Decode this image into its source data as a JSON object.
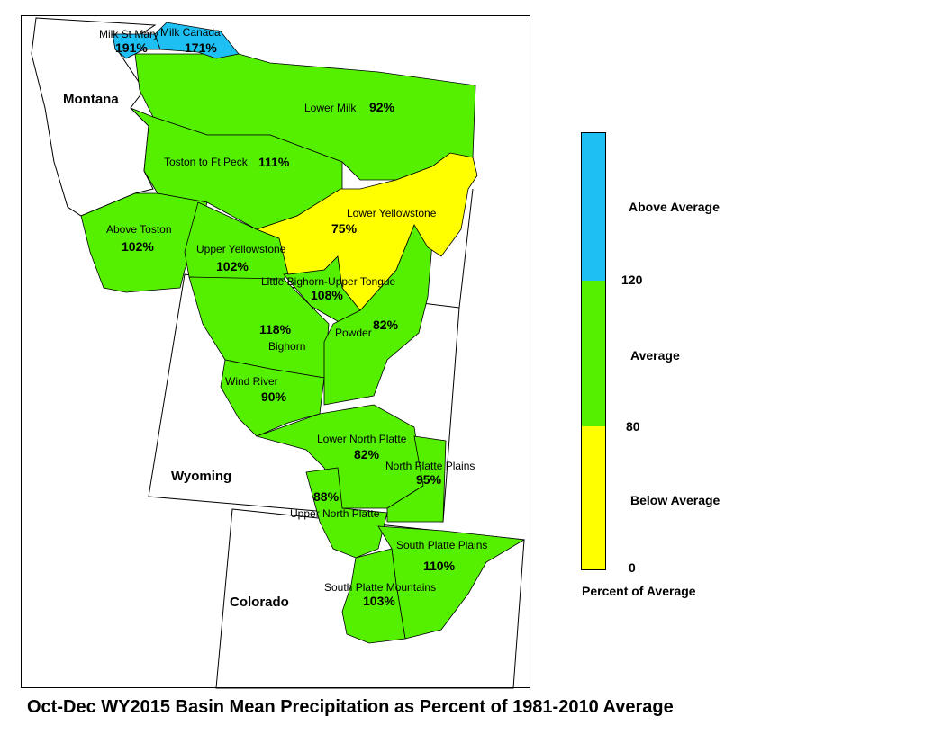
{
  "title": "Oct-Dec WY2015 Basin Mean Precipitation as Percent of 1981-2010 Average",
  "colors": {
    "above": "#1EBFF2",
    "average": "#55F000",
    "below": "#FFFF00"
  },
  "states": [
    "Montana",
    "Wyoming",
    "Colorado"
  ],
  "basins": [
    {
      "name": "Milk St Mary",
      "value": "191%",
      "category": "above"
    },
    {
      "name": "Milk Canada",
      "value": "171%",
      "category": "above"
    },
    {
      "name": "Lower Milk",
      "value": "92%",
      "category": "average"
    },
    {
      "name": "Toston to Ft Peck",
      "value": "111%",
      "category": "average"
    },
    {
      "name": "Lower Yellowstone",
      "value": "75%",
      "category": "below"
    },
    {
      "name": "Above Toston",
      "value": "102%",
      "category": "average"
    },
    {
      "name": "Upper Yellowstone",
      "value": "102%",
      "category": "average"
    },
    {
      "name": "Little Bighorn-Upper Tongue",
      "value": "108%",
      "category": "average"
    },
    {
      "name": "Bighorn",
      "value": "118%",
      "category": "average"
    },
    {
      "name": "Powder",
      "value": "82%",
      "category": "average"
    },
    {
      "name": "Wind River",
      "value": "90%",
      "category": "average"
    },
    {
      "name": "Lower North Platte",
      "value": "82%",
      "category": "average"
    },
    {
      "name": "North Platte Plains",
      "value": "95%",
      "category": "average"
    },
    {
      "name": "Upper North Platte",
      "value": "88%",
      "category": "average"
    },
    {
      "name": "South Platte Plains",
      "value": "110%",
      "category": "average"
    },
    {
      "name": "South Platte Mountains",
      "value": "103%",
      "category": "average"
    }
  ],
  "legend": {
    "title": "Percent of Average",
    "categories": [
      {
        "label": "Above Average",
        "color": "#1EBFF2",
        "range": [
          120,
          null
        ]
      },
      {
        "label": "Average",
        "color": "#55F000",
        "range": [
          80,
          120
        ]
      },
      {
        "label": "Below Average",
        "color": "#FFFF00",
        "range": [
          0,
          80
        ]
      }
    ],
    "ticks": [
      "120",
      "80",
      "0"
    ]
  }
}
